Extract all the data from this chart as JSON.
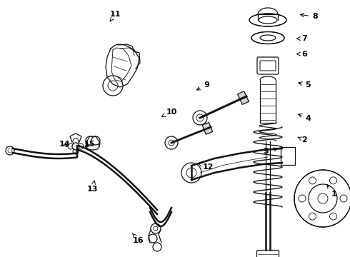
{
  "bg_color": "#ffffff",
  "line_color": "#111111",
  "lw": 0.9,
  "fs": 8,
  "figsize": [
    4.9,
    3.6
  ],
  "dpi": 100,
  "labels": [
    [
      "1",
      [
        0.955,
        0.755
      ],
      [
        0.93,
        0.71
      ]
    ],
    [
      "2",
      [
        0.87,
        0.545
      ],
      [
        0.845,
        0.53
      ]
    ],
    [
      "3",
      [
        0.76,
        0.59
      ],
      [
        0.8,
        0.575
      ]
    ],
    [
      "4",
      [
        0.88,
        0.46
      ],
      [
        0.845,
        0.44
      ]
    ],
    [
      "5",
      [
        0.88,
        0.33
      ],
      [
        0.845,
        0.32
      ]
    ],
    [
      "6",
      [
        0.87,
        0.21
      ],
      [
        0.84,
        0.21
      ]
    ],
    [
      "7",
      [
        0.87,
        0.15
      ],
      [
        0.84,
        0.15
      ]
    ],
    [
      "8",
      [
        0.9,
        0.065
      ],
      [
        0.85,
        0.055
      ]
    ],
    [
      "9",
      [
        0.59,
        0.33
      ],
      [
        0.555,
        0.355
      ]
    ],
    [
      "10",
      [
        0.49,
        0.435
      ],
      [
        0.46,
        0.455
      ]
    ],
    [
      "11",
      [
        0.33,
        0.055
      ],
      [
        0.31,
        0.09
      ]
    ],
    [
      "12",
      [
        0.595,
        0.65
      ],
      [
        0.565,
        0.635
      ]
    ],
    [
      "13",
      [
        0.265,
        0.735
      ],
      [
        0.27,
        0.7
      ]
    ],
    [
      "14",
      [
        0.185,
        0.56
      ],
      [
        0.195,
        0.58
      ]
    ],
    [
      "15",
      [
        0.255,
        0.56
      ],
      [
        0.237,
        0.578
      ]
    ],
    [
      "16",
      [
        0.395,
        0.935
      ],
      [
        0.378,
        0.907
      ]
    ]
  ]
}
